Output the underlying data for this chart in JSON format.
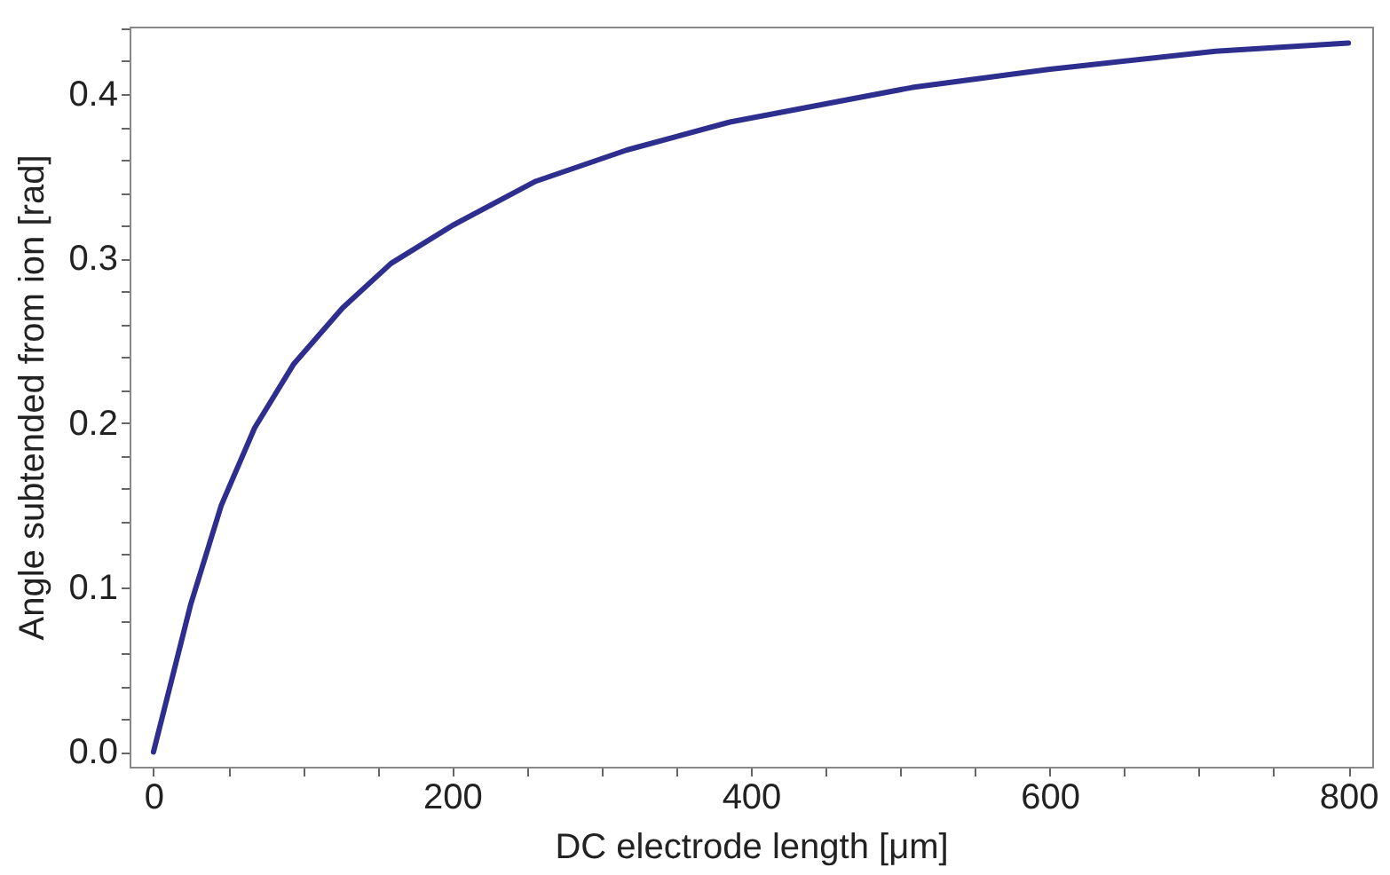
{
  "chart_data": {
    "type": "line",
    "xlabel": "DC electrode length  [μm]",
    "ylabel": "Angle subtended from ion  [rad]",
    "x": [
      0,
      25,
      45.4,
      67.7,
      94,
      126.6,
      159,
      200,
      256,
      317,
      386,
      508,
      599,
      711,
      800
    ],
    "series": [
      {
        "color": "#2e2e8f",
        "values": [
          0,
          0.09,
          0.15,
          0.197,
          0.236,
          0.27,
          0.297,
          0.32,
          0.347,
          0.366,
          0.383,
          0.404,
          0.415,
          0.426,
          0.431
        ]
      }
    ],
    "xlim": [
      -16,
      816
    ],
    "ylim": [
      -0.009,
      0.441
    ],
    "xticks": [
      0,
      {
        "value": 50,
        "label": null
      },
      {
        "value": 100,
        "label": null
      },
      {
        "value": 150,
        "label": null
      },
      200,
      {
        "value": 250,
        "label": null
      },
      {
        "value": 300,
        "label": null
      },
      {
        "value": 350,
        "label": null
      },
      400,
      {
        "value": 450,
        "label": null
      },
      {
        "value": 500,
        "label": null
      },
      {
        "value": 550,
        "label": null
      },
      600,
      {
        "value": 650,
        "label": null
      },
      {
        "value": 700,
        "label": null
      },
      {
        "value": 750,
        "label": null
      },
      800
    ],
    "yticks": [
      {
        "value": 0,
        "label": "0.0"
      },
      {
        "value": 0.02,
        "label": null
      },
      {
        "value": 0.04,
        "label": null
      },
      {
        "value": 0.06,
        "label": null
      },
      {
        "value": 0.08,
        "label": null
      },
      0.1,
      {
        "value": 0.12,
        "label": null
      },
      {
        "value": 0.14,
        "label": null
      },
      {
        "value": 0.16,
        "label": null
      },
      {
        "value": 0.18,
        "label": null
      },
      0.2,
      {
        "value": 0.22,
        "label": null
      },
      {
        "value": 0.24,
        "label": null
      },
      {
        "value": 0.26,
        "label": null
      },
      {
        "value": 0.28,
        "label": null
      },
      0.3,
      {
        "value": 0.32,
        "label": null
      },
      {
        "value": 0.34,
        "label": null
      },
      {
        "value": 0.36,
        "label": null
      },
      {
        "value": 0.38,
        "label": null
      },
      0.4,
      {
        "value": 0.42,
        "label": null
      },
      {
        "value": 0.44,
        "label": null
      }
    ],
    "grid": false,
    "marker": "none",
    "line_style": "solid"
  }
}
